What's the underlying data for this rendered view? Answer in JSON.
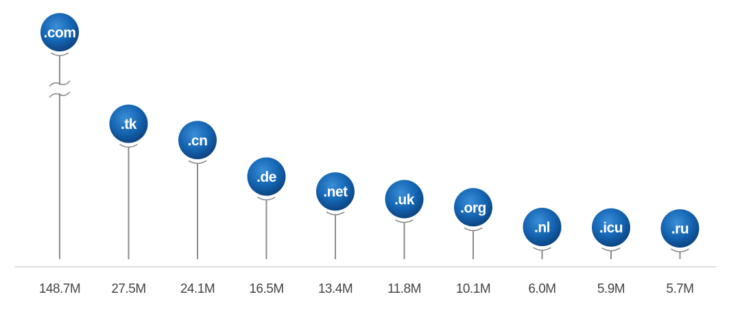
{
  "chart_data": {
    "type": "bar",
    "categories": [
      ".com",
      ".tk",
      ".cn",
      ".de",
      ".net",
      ".uk",
      ".org",
      ".nl",
      ".icu",
      ".ru"
    ],
    "values": [
      148.7,
      27.5,
      24.1,
      16.5,
      13.4,
      11.8,
      10.1,
      6.0,
      5.9,
      5.7
    ],
    "value_labels": [
      "148.7M",
      "27.5M",
      "24.1M",
      "16.5M",
      "13.4M",
      "11.8M",
      "10.1M",
      "6.0M",
      "5.9M",
      "5.7M"
    ],
    "title": "",
    "xlabel": "",
    "ylabel": "",
    "axis_break": true,
    "ylim": [
      0,
      30
    ],
    "grid": false,
    "colors": {
      "ball_light": "#3a8ed6",
      "ball_mid": "#1565b3",
      "ball_dark": "#0b3f7a",
      "stem": "#8a8a8a",
      "baseline": "#d4d4d4",
      "value_text": "#444444",
      "ball_text": "#ffffff"
    }
  }
}
